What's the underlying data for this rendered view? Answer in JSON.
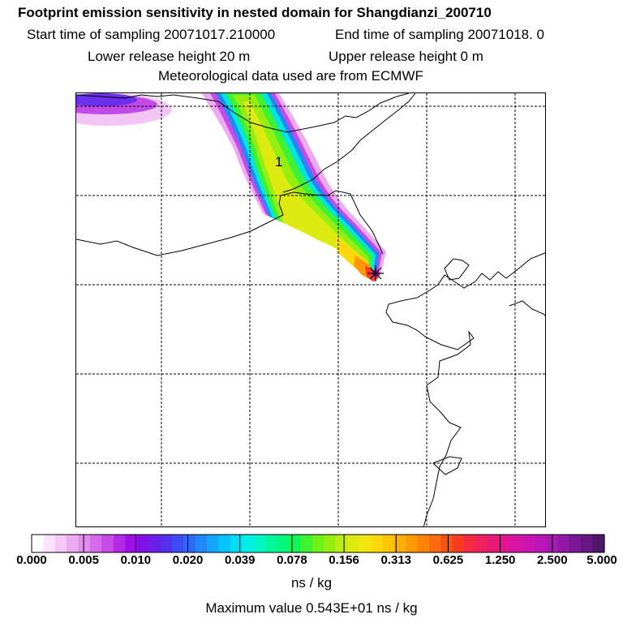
{
  "header": {
    "title": "Footprint emission sensitivity in nested domain for Shangdianzi_200710",
    "start_label": "Start time of sampling 20071017.210000",
    "end_label": "End time of sampling 20071018.     0",
    "lower_label": "Lower release height   20 m",
    "upper_label": "Upper release height    0 m",
    "met_label": "Meteorological data used are from ECMWF"
  },
  "map": {
    "plume_label": "1",
    "release_marker": "star-marker"
  },
  "colorbar": {
    "ticks": [
      "0.000",
      "0.005",
      "0.010",
      "0.020",
      "0.039",
      "0.078",
      "0.156",
      "0.313",
      "0.625",
      "1.250",
      "2.500",
      "5.000"
    ],
    "units": "ns / kg",
    "colors": [
      "#ffffff",
      "#fbe4fb",
      "#f4c8f6",
      "#ecaaf2",
      "#e08cee",
      "#d36be9",
      "#c64ae6",
      "#b528e6",
      "#9c0fe6",
      "#8210e8",
      "#6a20ea",
      "#5530ef",
      "#3f4cf5",
      "#2e6af8",
      "#1f88fb",
      "#12a6fd",
      "#06c2fd",
      "#00dcf6",
      "#00f0e6",
      "#00f7c3",
      "#00f79e",
      "#00f77a",
      "#10f456",
      "#3ef232",
      "#6cf018",
      "#96ee10",
      "#bcec10",
      "#dcea10",
      "#f2e610",
      "#fcd80c",
      "#fec408",
      "#feae06",
      "#fe9806",
      "#fd8208",
      "#fc6a0c",
      "#fa5212",
      "#f83c22",
      "#f42a40",
      "#f01f5e",
      "#ea1a7a",
      "#e21692",
      "#d814a4",
      "#cc14b2",
      "#bc16b8",
      "#a818b4",
      "#9218a8",
      "#7c1896",
      "#661880",
      "#50186a"
    ]
  },
  "footer": {
    "max_value": "Maximum value  0.543E+01 ns / kg"
  }
}
